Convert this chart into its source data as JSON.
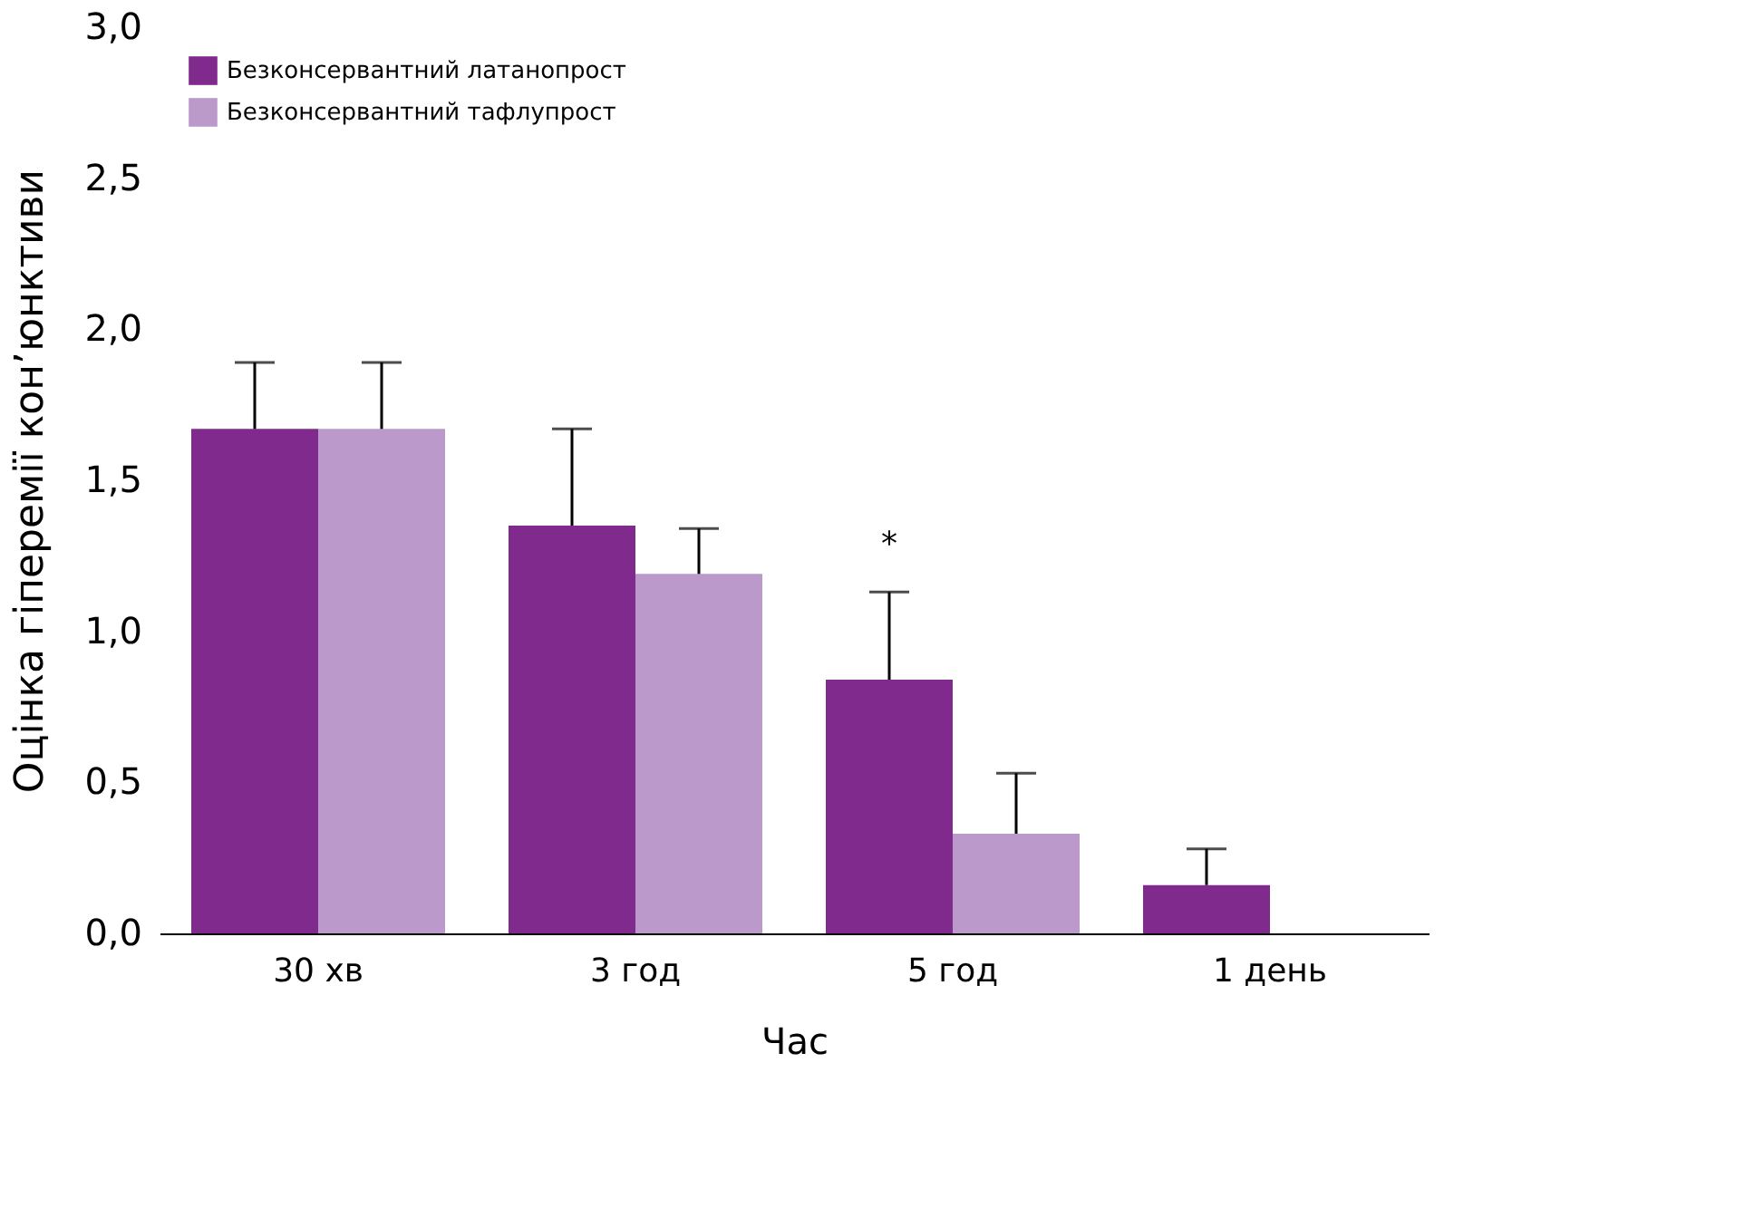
{
  "chart_data": {
    "type": "bar",
    "xlabel": "Час",
    "ylabel": "Оцінка гіперемії кон’юнктиви",
    "categories": [
      "30 хв",
      "3 год",
      "5 год",
      "1 день"
    ],
    "series": [
      {
        "name": "Безконсервантний латанопрост",
        "color": "#7f2a8c",
        "values": [
          1.67,
          1.35,
          0.84,
          0.16
        ],
        "errors": [
          [
            1.67,
            1.89
          ],
          [
            1.35,
            1.67
          ],
          [
            0.84,
            1.13
          ],
          [
            0.16,
            0.28
          ]
        ]
      },
      {
        "name": "Безконсервантний тафлупрост",
        "color": "#bb9acb",
        "values": [
          1.67,
          1.19,
          0.33,
          0
        ],
        "errors": [
          [
            1.67,
            1.89
          ],
          [
            1.19,
            1.34
          ],
          [
            0.33,
            0.53
          ],
          null
        ]
      }
    ],
    "ylim": [
      0,
      3.0
    ],
    "yticks": [
      {
        "value": 0,
        "label": "0,0"
      },
      {
        "value": 0.5,
        "label": "0,5"
      },
      {
        "value": 1.0,
        "label": "1,0"
      },
      {
        "value": 1.5,
        "label": "1,5"
      },
      {
        "value": 2.0,
        "label": "2,0"
      },
      {
        "value": 2.5,
        "label": "2,5"
      },
      {
        "value": 3.0,
        "label": "3,0"
      }
    ],
    "annotations": [
      "*"
    ],
    "legend": "top left",
    "grid": false
  }
}
